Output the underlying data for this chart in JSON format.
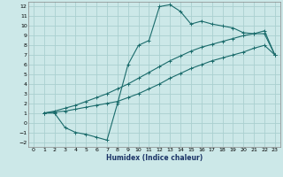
{
  "xlabel": "Humidex (Indice chaleur)",
  "xlim": [
    -0.5,
    23.5
  ],
  "ylim": [
    -2.5,
    12.5
  ],
  "xticks": [
    0,
    1,
    2,
    3,
    4,
    5,
    6,
    7,
    8,
    9,
    10,
    11,
    12,
    13,
    14,
    15,
    16,
    17,
    18,
    19,
    20,
    21,
    22,
    23
  ],
  "yticks": [
    -2,
    -1,
    0,
    1,
    2,
    3,
    4,
    5,
    6,
    7,
    8,
    9,
    10,
    11,
    12
  ],
  "bg_color": "#cce8e8",
  "grid_color": "#aad0d0",
  "line_color": "#1a6b6b",
  "line1_x": [
    1,
    2,
    3,
    4,
    5,
    6,
    7,
    8,
    9,
    10,
    11,
    12,
    13,
    14,
    15,
    16,
    17,
    18,
    19,
    20,
    21,
    22,
    23
  ],
  "line1_y": [
    1,
    1,
    -0.5,
    -1,
    -1.2,
    -1.5,
    -1.8,
    2.0,
    6,
    8,
    8.5,
    12,
    12.2,
    11.5,
    10.2,
    10.5,
    10.2,
    10,
    9.8,
    9.3,
    9.2,
    9.2,
    7
  ],
  "line2_x": [
    1,
    2,
    3,
    4,
    5,
    6,
    7,
    8,
    9,
    10,
    11,
    12,
    13,
    14,
    15,
    16,
    17,
    18,
    19,
    20,
    21,
    22,
    23
  ],
  "line2_y": [
    1,
    1.1,
    1.2,
    1.4,
    1.6,
    1.8,
    2.0,
    2.2,
    2.6,
    3.0,
    3.5,
    4.0,
    4.6,
    5.1,
    5.6,
    6.0,
    6.4,
    6.7,
    7.0,
    7.3,
    7.7,
    8.0,
    7.0
  ],
  "line3_x": [
    1,
    2,
    3,
    4,
    5,
    6,
    7,
    8,
    9,
    10,
    11,
    12,
    13,
    14,
    15,
    16,
    17,
    18,
    19,
    20,
    21,
    22,
    23
  ],
  "line3_y": [
    1,
    1.2,
    1.5,
    1.8,
    2.2,
    2.6,
    3.0,
    3.5,
    4.0,
    4.6,
    5.2,
    5.8,
    6.4,
    6.9,
    7.4,
    7.8,
    8.1,
    8.4,
    8.7,
    9.0,
    9.2,
    9.5,
    7.0
  ]
}
